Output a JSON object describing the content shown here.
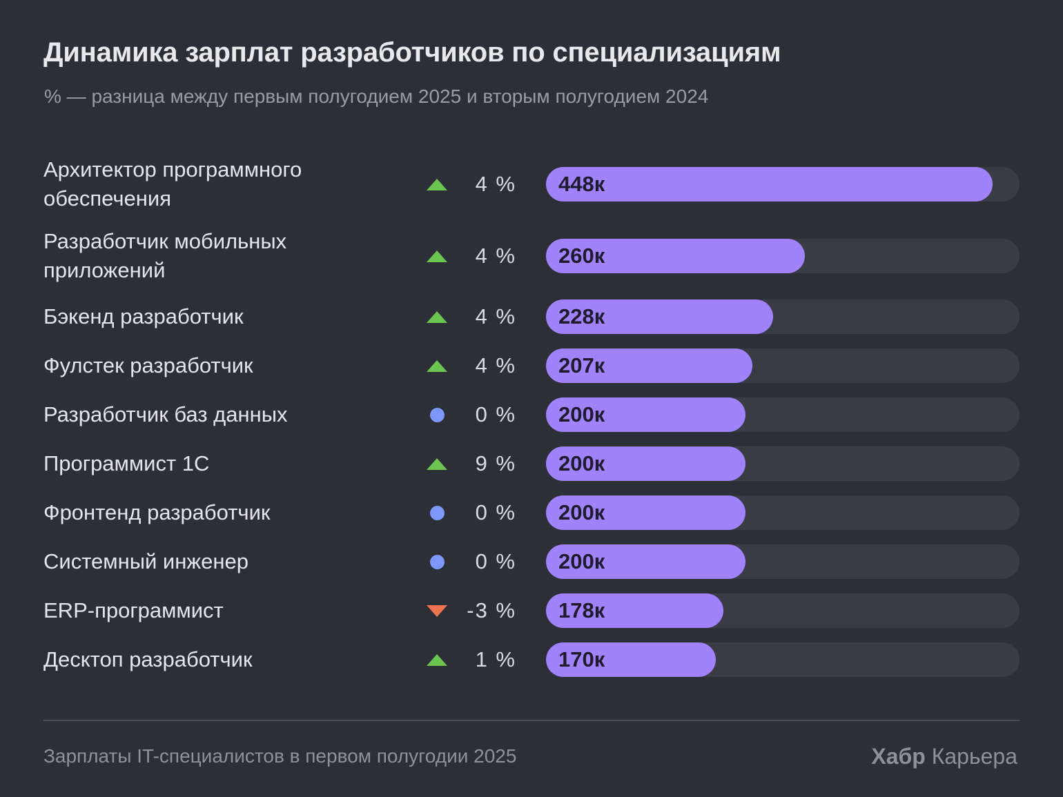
{
  "chart_data": {
    "type": "bar",
    "orientation": "horizontal",
    "title": "Динамика зарплат разработчиков по специализациям",
    "subtitle": "% — разница между первым полугодием 2025 и вторым полугодием 2024",
    "xlabel": "",
    "ylabel": "",
    "xlim": [
      0,
      475
    ],
    "unit_suffix": "к",
    "categories": [
      "Архитектор программного обеспечения",
      "Разработчик мобильных приложений",
      "Бэкенд разработчик",
      "Фулстек разработчик",
      "Разработчик баз данных",
      "Программист 1С",
      "Фронтенд разработчик",
      "Системный инженер",
      "ERP-программист",
      "Десктоп разработчик"
    ],
    "values": [
      448,
      260,
      228,
      207,
      200,
      200,
      200,
      200,
      178,
      170
    ],
    "change_pct": [
      4,
      4,
      4,
      4,
      0,
      9,
      0,
      0,
      -3,
      1
    ],
    "rows": [
      {
        "label": "Архитектор программного обеспечения",
        "value": 448,
        "value_label": "448к",
        "change": "4 %",
        "trend": "up"
      },
      {
        "label": "Разработчик мобильных приложений",
        "value": 260,
        "value_label": "260к",
        "change": "4 %",
        "trend": "up"
      },
      {
        "label": "Бэкенд разработчик",
        "value": 228,
        "value_label": "228к",
        "change": "4 %",
        "trend": "up"
      },
      {
        "label": "Фулстек разработчик",
        "value": 207,
        "value_label": "207к",
        "change": "4 %",
        "trend": "up"
      },
      {
        "label": "Разработчик баз данных",
        "value": 200,
        "value_label": "200к",
        "change": "0 %",
        "trend": "flat"
      },
      {
        "label": "Программист 1С",
        "value": 200,
        "value_label": "200к",
        "change": "9 %",
        "trend": "up"
      },
      {
        "label": "Фронтенд разработчик",
        "value": 200,
        "value_label": "200к",
        "change": "0 %",
        "trend": "flat"
      },
      {
        "label": "Системный инженер",
        "value": 200,
        "value_label": "200к",
        "change": "0 %",
        "trend": "flat"
      },
      {
        "label": "ERP-программист",
        "value": 178,
        "value_label": "178к",
        "change": "-3 %",
        "trend": "down"
      },
      {
        "label": "Десктоп разработчик",
        "value": 170,
        "value_label": "170к",
        "change": "1 %",
        "trend": "up"
      }
    ],
    "colors": {
      "bar": "#a083fb",
      "track": "#3a3c45",
      "up": "#6cc551",
      "down": "#ef7350",
      "flat": "#7d98f8"
    },
    "grid": false,
    "legend": "none"
  },
  "footer": {
    "source": "Зарплаты IT-специалистов в первом полугодии 2025",
    "brand_bold": "Хабр",
    "brand_regular": "Карьера"
  }
}
